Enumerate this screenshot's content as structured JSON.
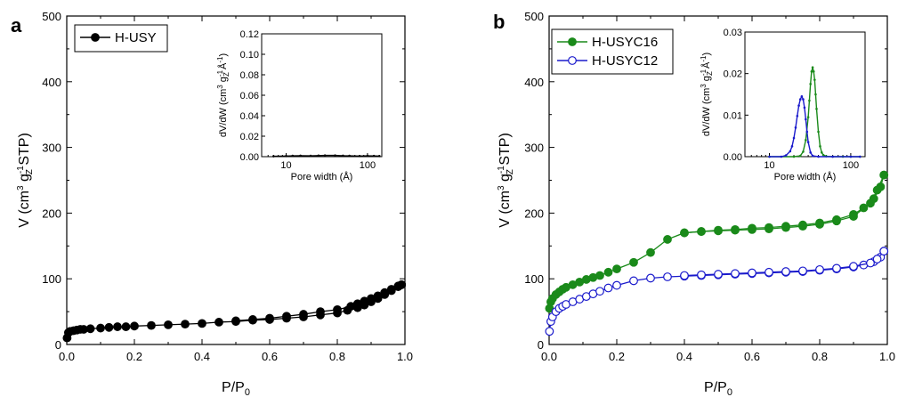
{
  "chart_data": [
    {
      "type": "line",
      "panel": "a",
      "xlabel": "P/P0",
      "xlabel_main": "P/P",
      "xlabel_sub": "0",
      "ylabel": "V (cm3 gZ-1 STP)",
      "xlim": [
        0,
        1.0
      ],
      "ylim": [
        0,
        500
      ],
      "xticks": [
        "0.0",
        "0.2",
        "0.4",
        "0.6",
        "0.8",
        "1.0"
      ],
      "yticks": [
        "0",
        "100",
        "200",
        "300",
        "400",
        "500"
      ],
      "legend_position": "top-left",
      "series": [
        {
          "name": "H-USY",
          "color": "#000000",
          "marker": "filled-circle",
          "x": [
            0.001,
            0.005,
            0.01,
            0.02,
            0.03,
            0.04,
            0.05,
            0.07,
            0.1,
            0.125,
            0.15,
            0.175,
            0.2,
            0.25,
            0.3,
            0.35,
            0.4,
            0.45,
            0.5,
            0.55,
            0.6,
            0.65,
            0.7,
            0.75,
            0.8,
            0.83,
            0.86,
            0.88,
            0.9,
            0.92,
            0.94,
            0.96,
            0.98,
            0.99
          ],
          "y": [
            10,
            18,
            20,
            21,
            22,
            23,
            23,
            24,
            25,
            26,
            27,
            27,
            28,
            29,
            30,
            31,
            32,
            34,
            35,
            37,
            38,
            40,
            42,
            45,
            48,
            52,
            56,
            60,
            65,
            70,
            76,
            82,
            88,
            91
          ]
        },
        {
          "name": "",
          "color": "#000000",
          "marker": "filled-circle",
          "x": [
            0.99,
            0.98,
            0.96,
            0.94,
            0.92,
            0.9,
            0.88,
            0.86,
            0.84,
            0.8,
            0.75,
            0.7,
            0.65,
            0.6,
            0.55,
            0.5
          ],
          "y": [
            91,
            89,
            84,
            79,
            74,
            70,
            66,
            62,
            58,
            53,
            50,
            46,
            43,
            40,
            38,
            36
          ]
        }
      ],
      "inset": {
        "xlabel": "Pore width (Å)",
        "ylabel": "dV/dW (cm3 gZ-1 Å-1)",
        "xscale": "log",
        "xlim": [
          5,
          150
        ],
        "ylim": [
          0,
          0.12
        ],
        "xticks": [
          "10",
          "100"
        ],
        "yticks": [
          "0.00",
          "0.02",
          "0.04",
          "0.06",
          "0.08",
          "0.10",
          "0.12"
        ],
        "series": [
          {
            "name": "H-USY",
            "color": "#000000",
            "x": [
              7,
              10,
              12,
              15,
              20,
              25,
              30,
              40,
              50,
              60,
              80,
              100,
              120,
              140
            ],
            "y": [
              0.0004,
              0.0006,
              0.0008,
              0.0009,
              0.0008,
              0.001,
              0.0012,
              0.0012,
              0.0009,
              0.0008,
              0.0006,
              0.0008,
              0.0007,
              0.0006
            ]
          }
        ]
      }
    },
    {
      "type": "line",
      "panel": "b",
      "xlabel": "P/P0",
      "xlabel_main": "P/P",
      "xlabel_sub": "0",
      "ylabel": "V (cm3 gZ-1 STP)",
      "xlim": [
        0,
        1.0
      ],
      "ylim": [
        0,
        500
      ],
      "xticks": [
        "0.0",
        "0.2",
        "0.4",
        "0.6",
        "0.8",
        "1.0"
      ],
      "yticks": [
        "0",
        "100",
        "200",
        "300",
        "400",
        "500"
      ],
      "legend_position": "top-left",
      "series": [
        {
          "name": "H-USYC16",
          "color": "#1a8a1a",
          "marker": "filled-circle",
          "x": [
            0.001,
            0.005,
            0.01,
            0.02,
            0.03,
            0.04,
            0.05,
            0.07,
            0.09,
            0.11,
            0.13,
            0.15,
            0.175,
            0.2,
            0.25,
            0.3,
            0.35,
            0.4,
            0.45,
            0.5,
            0.55,
            0.6,
            0.65,
            0.7,
            0.75,
            0.8,
            0.85,
            0.9,
            0.93,
            0.96,
            0.98,
            0.99
          ],
          "y": [
            55,
            65,
            70,
            76,
            80,
            84,
            87,
            91,
            95,
            99,
            102,
            105,
            110,
            115,
            125,
            140,
            160,
            170,
            172,
            174,
            175,
            177,
            178,
            180,
            182,
            185,
            190,
            198,
            208,
            222,
            240,
            258
          ]
        },
        {
          "name": "",
          "color": "#1a8a1a",
          "marker": "filled-circle",
          "x": [
            0.99,
            0.97,
            0.95,
            0.9,
            0.85,
            0.8,
            0.75,
            0.7,
            0.65,
            0.6,
            0.55,
            0.5,
            0.45,
            0.4
          ],
          "y": [
            258,
            235,
            215,
            195,
            188,
            183,
            180,
            178,
            176,
            175,
            174,
            173,
            172,
            170
          ]
        },
        {
          "name": "H-USYC12",
          "color": "#1a1acc",
          "marker": "open-circle",
          "x": [
            0.001,
            0.005,
            0.01,
            0.02,
            0.03,
            0.04,
            0.05,
            0.07,
            0.09,
            0.11,
            0.13,
            0.15,
            0.175,
            0.2,
            0.25,
            0.3,
            0.35,
            0.4,
            0.45,
            0.5,
            0.55,
            0.6,
            0.65,
            0.7,
            0.75,
            0.8,
            0.85,
            0.9,
            0.93,
            0.96,
            0.98,
            0.99
          ],
          "y": [
            20,
            35,
            42,
            50,
            55,
            58,
            61,
            65,
            69,
            73,
            77,
            81,
            86,
            90,
            97,
            101,
            103,
            104,
            105,
            106,
            107,
            108,
            109,
            110,
            111,
            113,
            115,
            118,
            121,
            126,
            133,
            142
          ]
        },
        {
          "name": "",
          "color": "#1a1acc",
          "marker": "open-circle",
          "x": [
            0.99,
            0.97,
            0.95,
            0.9,
            0.85,
            0.8,
            0.75,
            0.7,
            0.65,
            0.6,
            0.55,
            0.5,
            0.45,
            0.4
          ],
          "y": [
            142,
            130,
            124,
            119,
            116,
            114,
            112,
            111,
            110,
            109,
            108,
            107,
            106,
            105
          ]
        }
      ],
      "inset": {
        "xlabel": "Pore width (Å)",
        "ylabel": "dV/dW (cm3 gZ-1 Å-1)",
        "xscale": "log",
        "xlim": [
          5,
          150
        ],
        "ylim": [
          0,
          0.03
        ],
        "xticks": [
          "10",
          "100"
        ],
        "yticks": [
          "0.00",
          "0.01",
          "0.02",
          "0.03"
        ],
        "series": [
          {
            "name": "H-USYC16",
            "color": "#1a8a1a",
            "x": [
              10,
              20,
              24,
              26,
              28,
              30,
              31,
              32,
              33,
              34,
              35,
              36,
              37,
              38,
              40,
              42,
              44,
              46,
              50,
              60,
              80,
              100,
              130
            ],
            "y": [
              0,
              0,
              0.0002,
              0.0012,
              0.004,
              0.0095,
              0.0135,
              0.0175,
              0.0205,
              0.0215,
              0.0205,
              0.0185,
              0.015,
              0.0115,
              0.006,
              0.0025,
              0.001,
              0.0004,
              0.0001,
              0,
              0,
              0,
              0
            ]
          },
          {
            "name": "H-USYC12",
            "color": "#1a1acc",
            "x": [
              10,
              14,
              16,
              18,
              19,
              20,
              21,
              22,
              23,
              24,
              25,
              26,
              27,
              28,
              29,
              30,
              32,
              34,
              40,
              60,
              100,
              130
            ],
            "y": [
              0,
              0,
              0.0003,
              0.0013,
              0.0025,
              0.0045,
              0.007,
              0.0098,
              0.0123,
              0.0138,
              0.0145,
              0.0138,
              0.0118,
              0.009,
              0.006,
              0.0035,
              0.001,
              0.0002,
              0,
              0,
              0,
              0
            ]
          }
        ]
      }
    }
  ],
  "panels": {
    "a": {
      "letter": "a"
    },
    "b": {
      "letter": "b"
    }
  }
}
